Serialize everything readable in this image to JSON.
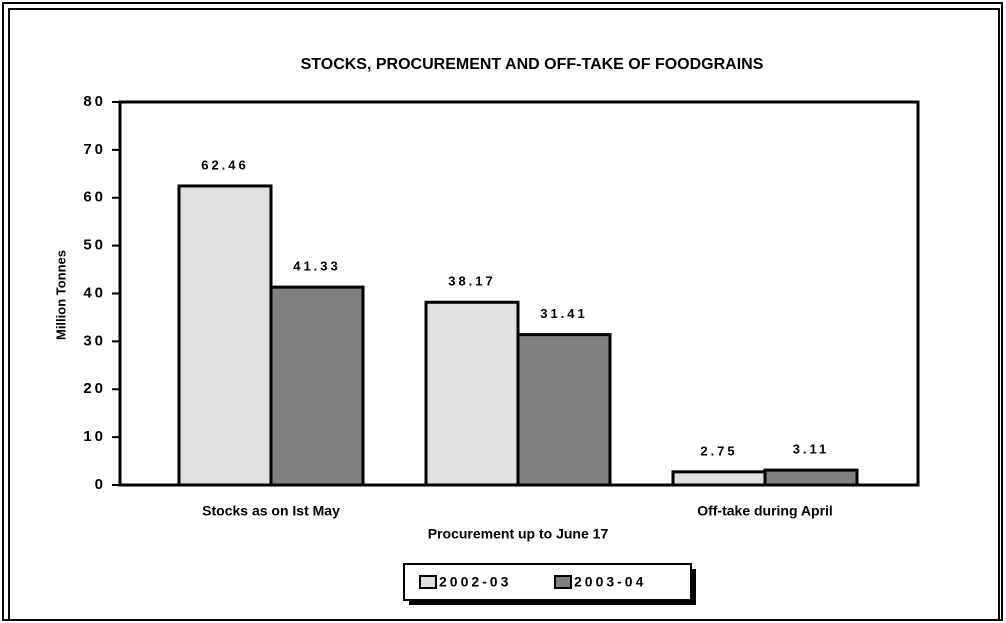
{
  "chart_data": {
    "type": "bar",
    "title": "STOCKS, PROCUREMENT AND OFF-TAKE OF FOODGRAINS",
    "y_label": "Million Tonnes",
    "categories": [
      "Stocks as on Ist May",
      "Procurement up to June 17",
      "Off-take during April"
    ],
    "series": [
      {
        "name": "2002-03",
        "color": "#e0e0e0",
        "values": [
          62.46,
          38.17,
          2.75
        ]
      },
      {
        "name": "2003-04",
        "color": "#808080",
        "values": [
          41.33,
          31.41,
          3.11
        ]
      }
    ],
    "ylim": [
      0,
      80
    ],
    "yticks": [
      0,
      10,
      20,
      30,
      40,
      50,
      60,
      70,
      80
    ],
    "legend": "bottom"
  }
}
